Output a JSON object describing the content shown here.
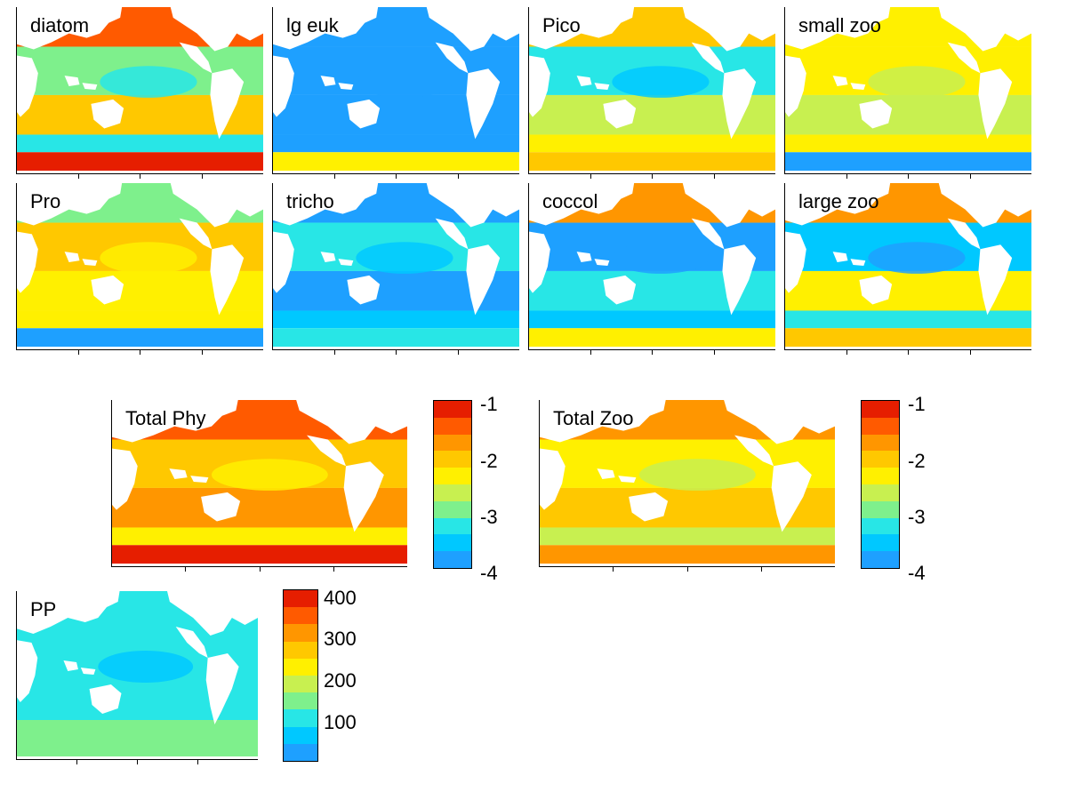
{
  "colors": {
    "scale": [
      "#1ea0ff",
      "#00c8ff",
      "#28e6e6",
      "#7ef08c",
      "#c8f050",
      "#fff000",
      "#ffc800",
      "#ff9600",
      "#ff5a00",
      "#e61e00"
    ],
    "land": "#ffffff",
    "axis": "#000000"
  },
  "panels": [
    {
      "id": "diatom",
      "label": "diatom",
      "level": [
        8,
        3,
        6,
        2,
        9
      ]
    },
    {
      "id": "lg-euk",
      "label": "lg euk",
      "level": [
        0,
        0,
        0,
        0,
        5
      ]
    },
    {
      "id": "pico",
      "label": "Pico",
      "level": [
        6,
        2,
        4,
        5,
        6
      ]
    },
    {
      "id": "small-zoo",
      "label": "small zoo",
      "level": [
        5,
        5,
        4,
        5,
        0
      ]
    },
    {
      "id": "pro",
      "label": "Pro",
      "level": [
        3,
        6,
        5,
        5,
        0
      ]
    },
    {
      "id": "tricho",
      "label": "tricho",
      "level": [
        0,
        2,
        0,
        1,
        2
      ]
    },
    {
      "id": "coccol",
      "label": "coccol",
      "level": [
        7,
        0,
        2,
        1,
        5
      ]
    },
    {
      "id": "large-zoo",
      "label": "large zoo",
      "level": [
        7,
        1,
        5,
        2,
        6
      ]
    },
    {
      "id": "total-phy",
      "label": "Total Phy",
      "level": [
        8,
        6,
        7,
        5,
        9
      ]
    },
    {
      "id": "total-zoo",
      "label": "Total Zoo",
      "level": [
        7,
        5,
        6,
        4,
        7
      ]
    },
    {
      "id": "pp",
      "label": "PP",
      "level": [
        2,
        2,
        2,
        3,
        3
      ]
    }
  ],
  "colorbars": [
    {
      "id": "colorbar-log",
      "ticks": [
        "-1",
        "-2",
        "-3",
        "-4"
      ]
    },
    {
      "id": "colorbar-log-2",
      "ticks": [
        "-1",
        "-2",
        "-3",
        "-4"
      ]
    },
    {
      "id": "colorbar-pp",
      "ticks": [
        "400",
        "300",
        "200",
        "100"
      ]
    }
  ]
}
